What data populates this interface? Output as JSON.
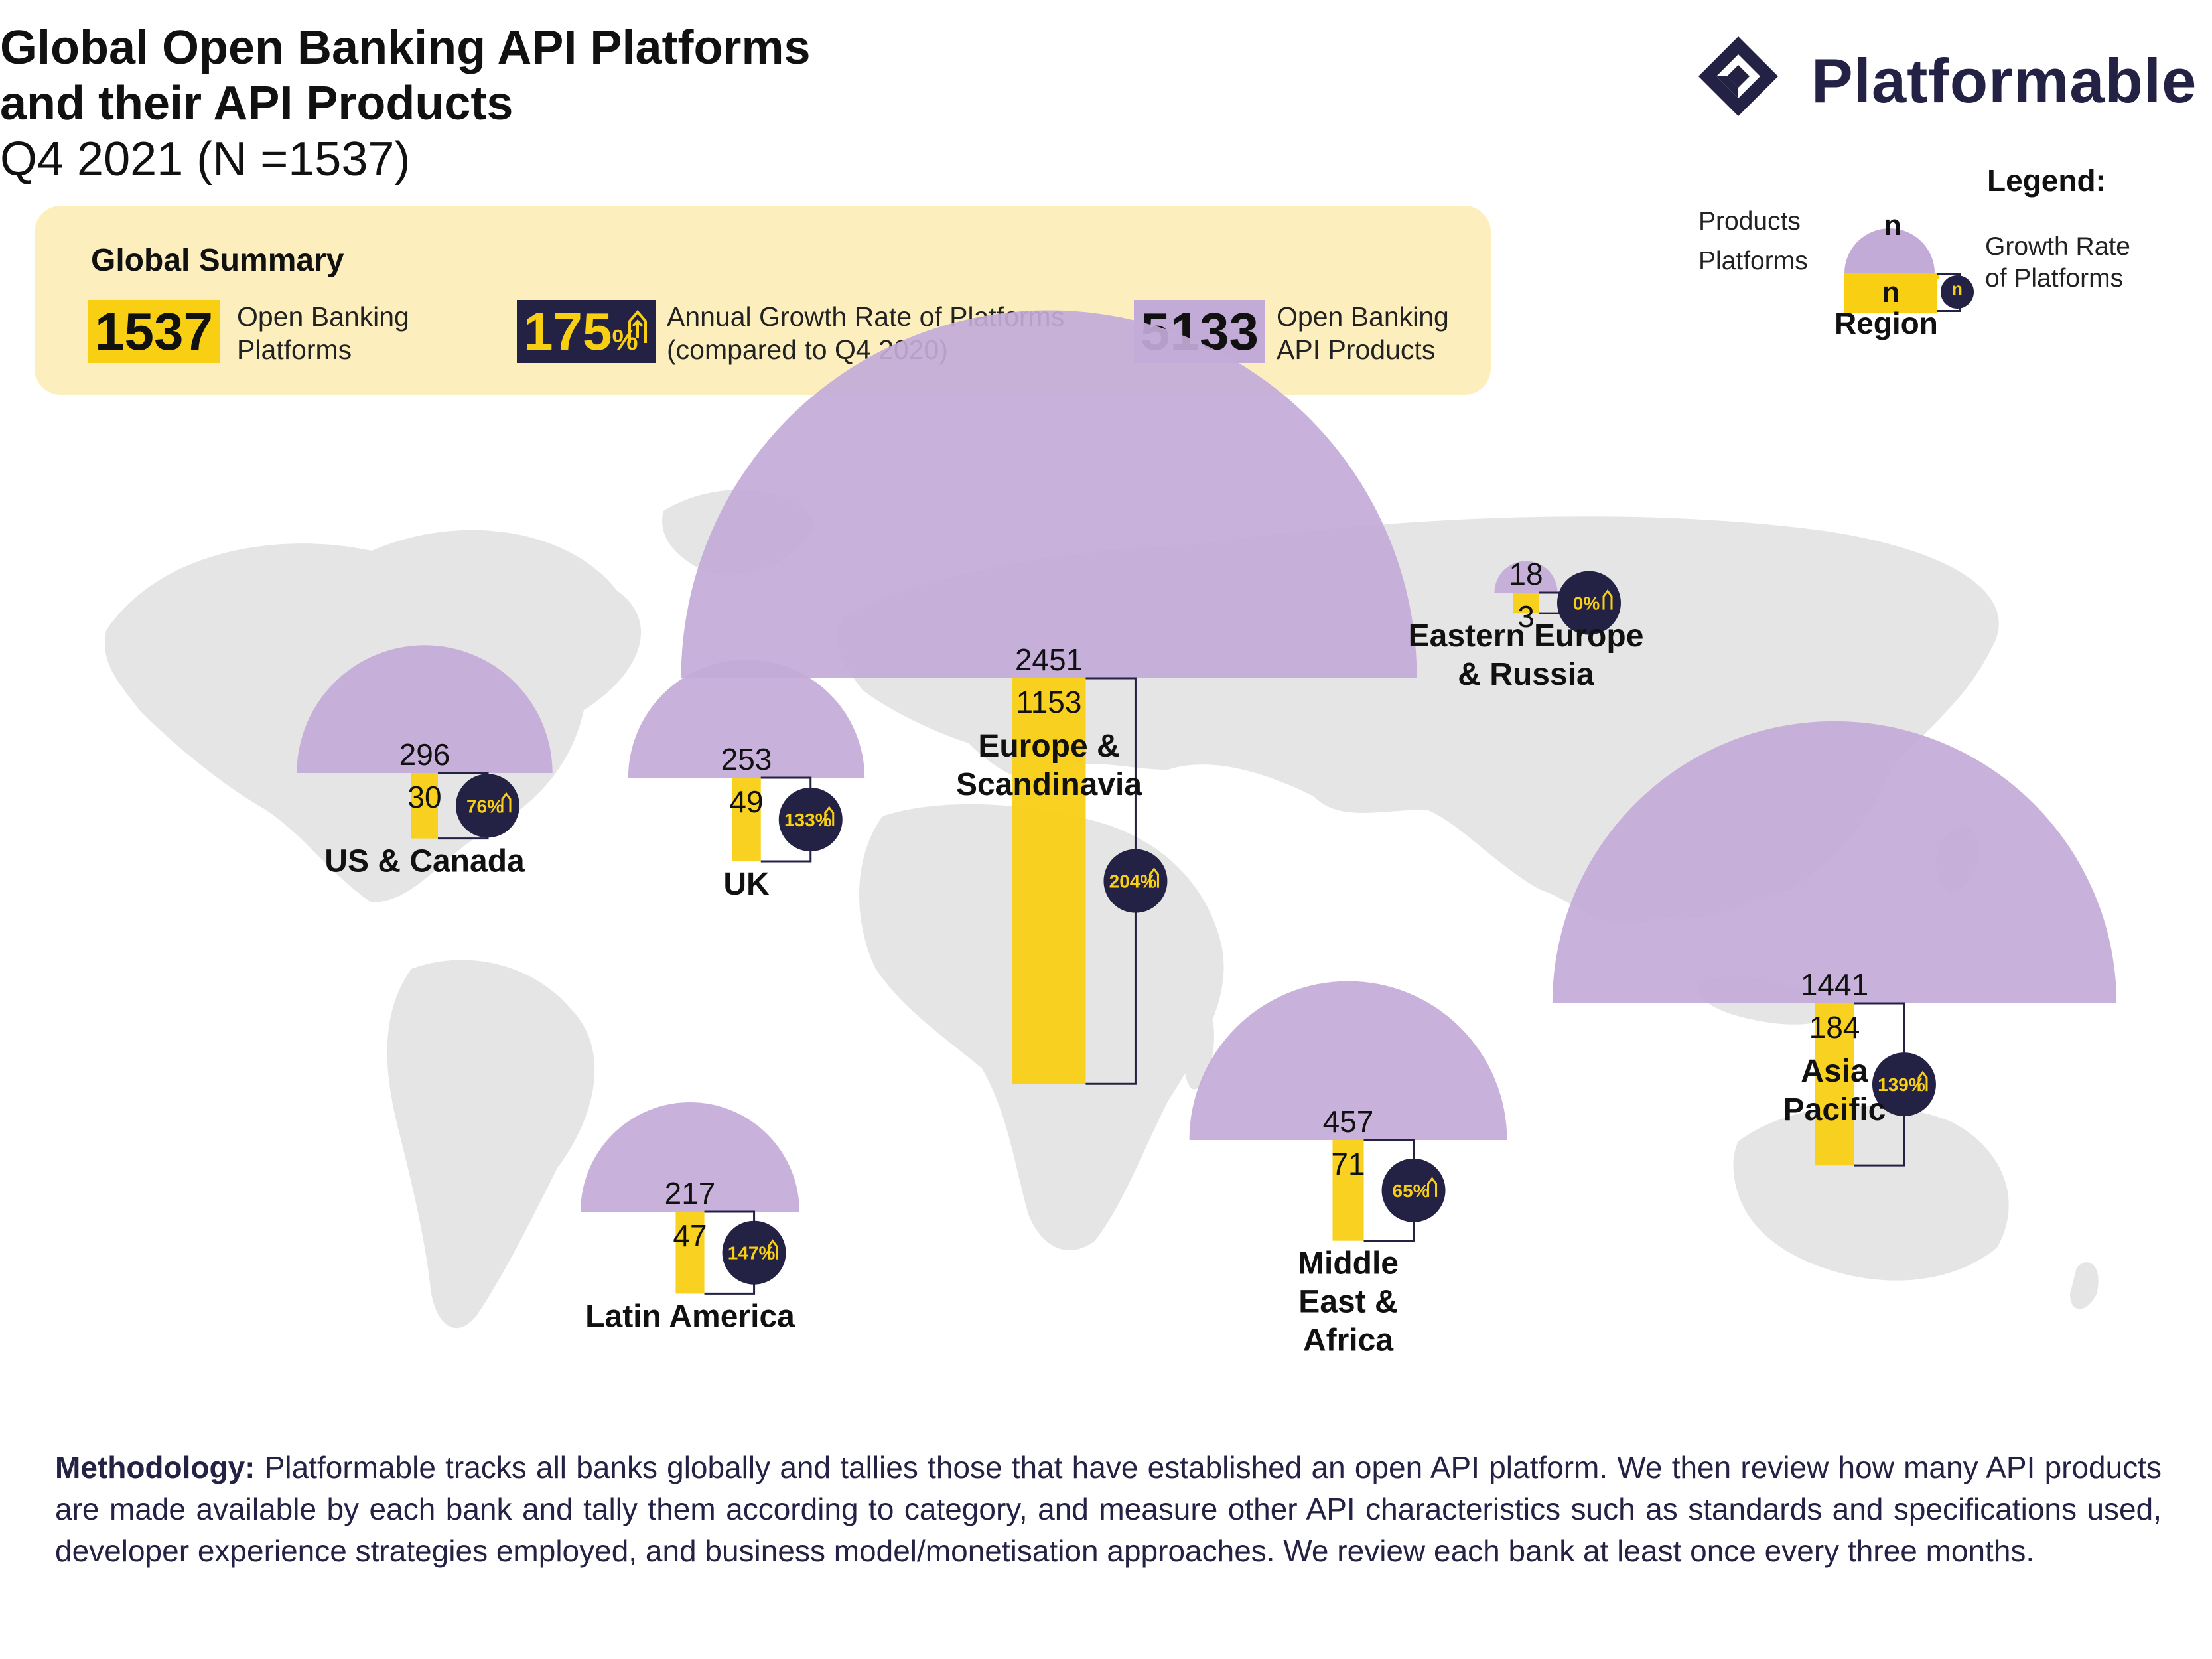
{
  "header": {
    "title_line1": "Global Open Banking API Platforms",
    "title_line2": "and their API Products",
    "subtitle": "Q4 2021 (N =1537)"
  },
  "logo": {
    "name": "Platformable",
    "icon": "diamond-logo-icon"
  },
  "summary": {
    "title": "Global Summary",
    "platforms_value": "1537",
    "platforms_label_1": "Open Banking",
    "platforms_label_2": "Platforms",
    "growth_value": "175",
    "growth_unit": "%",
    "growth_label_1": "Annual Growth Rate of Platforms",
    "growth_label_2": "(compared to Q4 2020)",
    "products_value": "5133",
    "products_label_1": "Open Banking",
    "products_label_2": "API Products"
  },
  "legend": {
    "title": "Legend:",
    "products": "Products",
    "platforms": "Platforms",
    "n": "n",
    "growth_1": "Growth Rate",
    "growth_2": "of Platforms",
    "region": "Region"
  },
  "colors": {
    "products": "#c3abd8",
    "platforms": "#f9cf14",
    "growth_circle": "#232144",
    "map": "#e6e6e6",
    "summary_bg": "#fcefbd"
  },
  "chart_data": {
    "type": "bar",
    "title": "Global Open Banking API Platforms and their API Products",
    "subtitle": "Q4 2021 (N =1537)",
    "legend_position": "top-right",
    "regions": [
      {
        "name_lines": [
          "US & Canada"
        ],
        "products": 296,
        "platforms": 30,
        "growth": "76%"
      },
      {
        "name_lines": [
          "UK"
        ],
        "products": 253,
        "platforms": 49,
        "growth": "133%"
      },
      {
        "name_lines": [
          "Europe &",
          "Scandinavia"
        ],
        "products": 2451,
        "platforms": 1153,
        "growth": "204%"
      },
      {
        "name_lines": [
          "Eastern Europe",
          "& Russia"
        ],
        "products": 18,
        "platforms": 3,
        "growth": "0%"
      },
      {
        "name_lines": [
          "Latin America"
        ],
        "products": 217,
        "platforms": 47,
        "growth": "147%"
      },
      {
        "name_lines": [
          "Middle",
          "East &",
          "Africa"
        ],
        "products": 457,
        "platforms": 71,
        "growth": "65%"
      },
      {
        "name_lines": [
          "Asia",
          "Pacific"
        ],
        "products": 1441,
        "platforms": 184,
        "growth": "139%"
      }
    ]
  },
  "methodology": {
    "label": "Methodology:",
    "text": " Platformable tracks all banks globally and tallies those that have established an open API platform. We then review how many API products are made available by each bank and tally them according to category, and measure other API characteristics such as standards and specifications used, developer experience strategies employed, and business model/monetisation approaches. We review each bank at least once every three months."
  }
}
